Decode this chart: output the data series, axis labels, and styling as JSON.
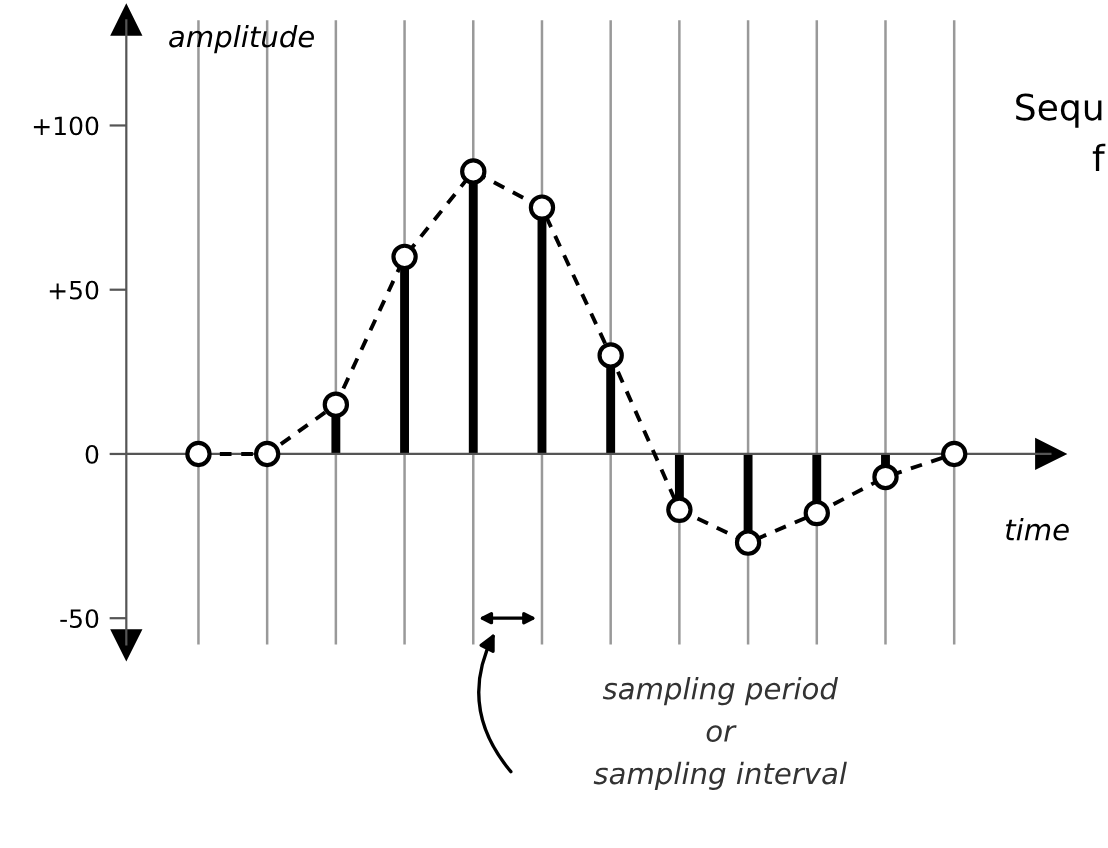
{
  "chart_data": {
    "type": "lollipop",
    "xlabel": "time",
    "ylabel": "amplitude",
    "categories": [
      null,
      null,
      null,
      null,
      null,
      null,
      null,
      null,
      null,
      null,
      null,
      null
    ],
    "series": [
      {
        "type": "line",
        "color": "#000000",
        "line_style": "dashed",
        "marker": "none",
        "values": [
          0,
          0,
          15,
          60,
          86,
          75,
          30,
          -17,
          -27,
          -18,
          -7,
          0
        ]
      },
      {
        "color": "#000000",
        "marker": "circle",
        "values": [
          0,
          0,
          15,
          60,
          86,
          75,
          30,
          -17,
          -27,
          -18,
          -7,
          0
        ]
      }
    ],
    "ylim": [
      -58,
      132
    ],
    "yticks": [
      {
        "value": 100,
        "label": "+100"
      },
      {
        "value": 50,
        "label": "+50"
      },
      0,
      -50
    ],
    "tick_labels": "y",
    "grid": "x",
    "annotations": [
      "Sequ",
      "f",
      "sampling period",
      "or",
      "sampling interval"
    ]
  }
}
